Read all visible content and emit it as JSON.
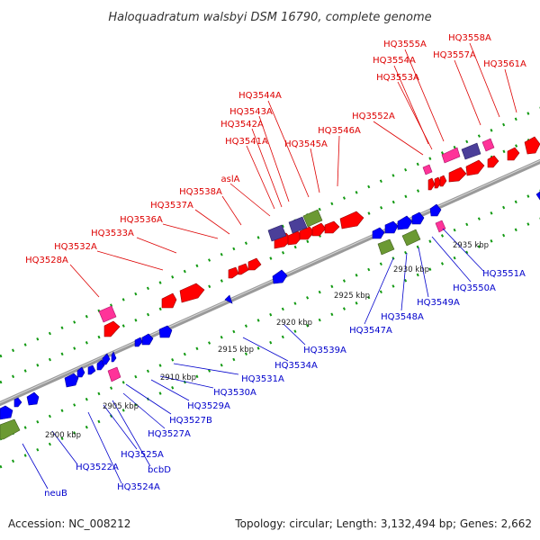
{
  "title": "Haloquadratum walsbyi DSM 16790, complete genome",
  "footer": {
    "accession": "Accession: NC_008212",
    "summary": "Topology: circular; Length: 3,132,494 bp; Genes: 2,662"
  },
  "colors": {
    "forward_label": "#dd0000",
    "reverse_label": "#0000cc",
    "forward_gene": "#ff0000",
    "reverse_gene": "#0000ff",
    "pink_gene": "#ff3399",
    "purple_gene": "#4b3f99",
    "olive_gene": "#6b9933",
    "backbone": "#888888",
    "dotted_track": "#119911"
  },
  "scale_ticks": [
    "2900 kbp",
    "2905 kbp",
    "2910 kbp",
    "2915 kbp",
    "2920 kbp",
    "2925 kbp",
    "2930 kbp",
    "2935 kbp"
  ],
  "forward_labels": [
    "HQ3528A",
    "HQ3532A",
    "HQ3533A",
    "HQ3536A",
    "HQ3537A",
    "HQ3538A",
    "aslA",
    "HQ3541A",
    "HQ3542A",
    "HQ3543A",
    "HQ3544A",
    "HQ3545A",
    "HQ3546A",
    "HQ3552A",
    "HQ3553A",
    "HQ3554A",
    "HQ3555A",
    "HQ3557A",
    "HQ3558A",
    "HQ3561A"
  ],
  "reverse_labels": [
    "neuB",
    "HQ3522A",
    "HQ3524A",
    "bcbD",
    "HQ3525A",
    "HQ3527A",
    "HQ3527B",
    "HQ3529A",
    "HQ3530A",
    "HQ3531A",
    "HQ3534A",
    "HQ3539A",
    "HQ3547A",
    "HQ3548A",
    "HQ3549A",
    "HQ3550A",
    "HQ3551A"
  ]
}
